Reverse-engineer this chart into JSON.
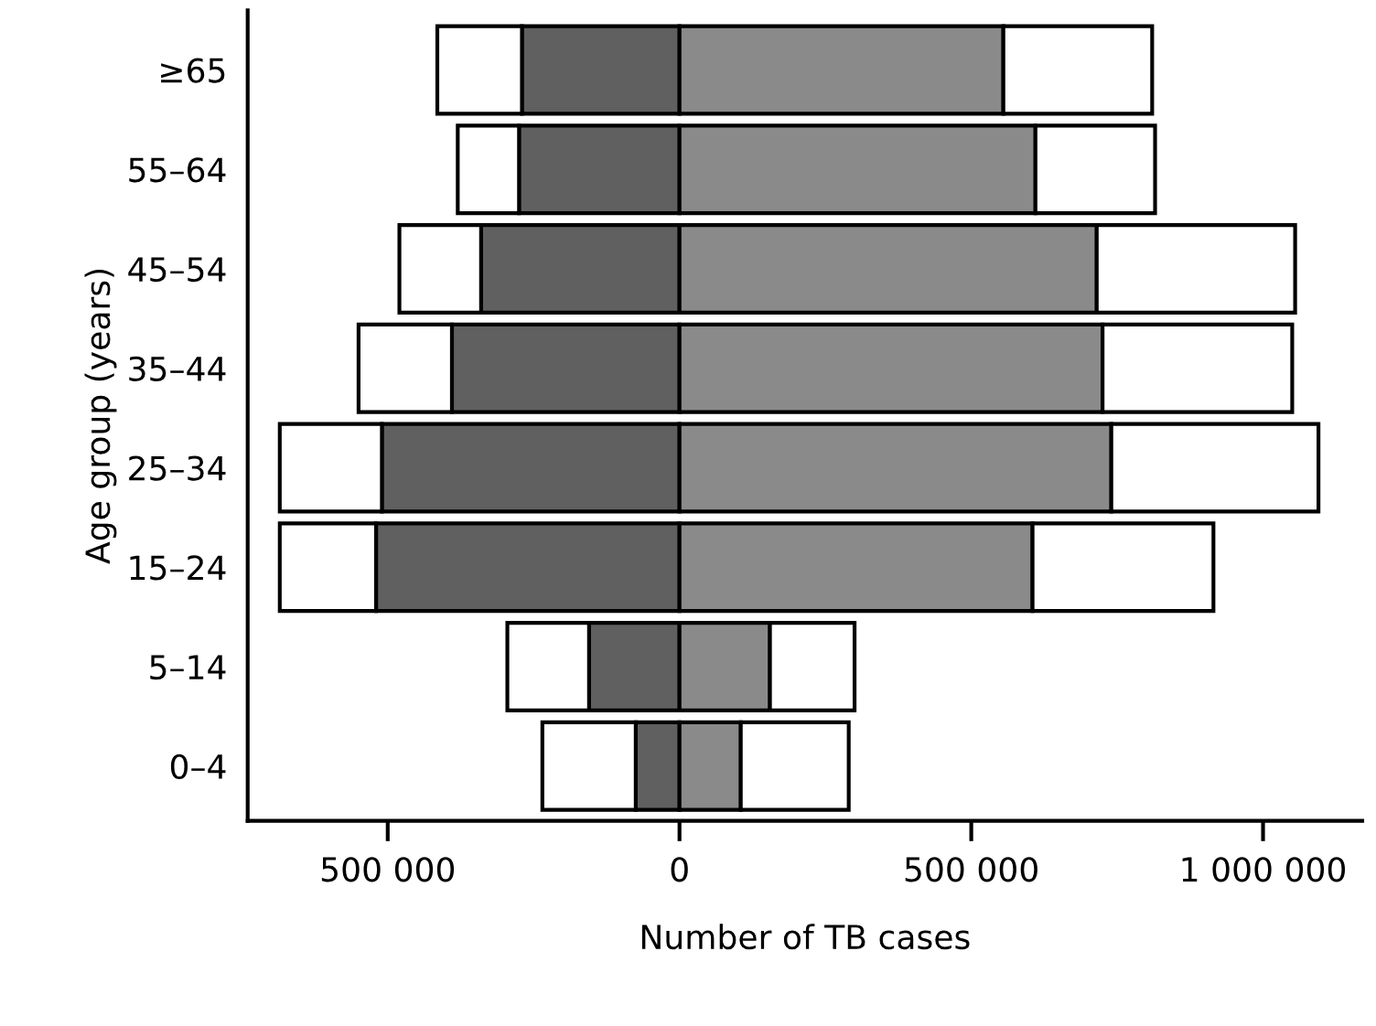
{
  "chart_data": {
    "type": "bar",
    "orientation": "horizontal",
    "stacked": true,
    "xlabel": "Number of TB cases",
    "ylabel": "Age group (years)",
    "categories": [
      "≥65",
      "55–64",
      "45–54",
      "35–44",
      "25–34",
      "15–24",
      "5–14",
      "0–4"
    ],
    "series": [
      {
        "color": "#606060",
        "values": [
          -270000,
          -275000,
          -340000,
          -390000,
          -510000,
          -520000,
          -155000,
          -75000
        ]
      },
      {
        "color": "#ffffff",
        "values": [
          -145000,
          -105000,
          -140000,
          -160000,
          -175000,
          -165000,
          -140000,
          -160000
        ]
      },
      {
        "color": "#8a8a8a",
        "values": [
          555000,
          610000,
          715000,
          725000,
          740000,
          605000,
          155000,
          105000
        ]
      },
      {
        "color": "#ffffff",
        "values": [
          255000,
          205000,
          340000,
          325000,
          355000,
          310000,
          145000,
          185000
        ]
      }
    ],
    "xlim": [
      -740000,
      1170000
    ],
    "xticks": [
      {
        "value": -500000,
        "label": "500 000"
      },
      0,
      {
        "value": 500000,
        "label": "500 000"
      },
      {
        "value": 1000000,
        "label": "1 000 000"
      }
    ],
    "grid": false,
    "legend": false
  }
}
